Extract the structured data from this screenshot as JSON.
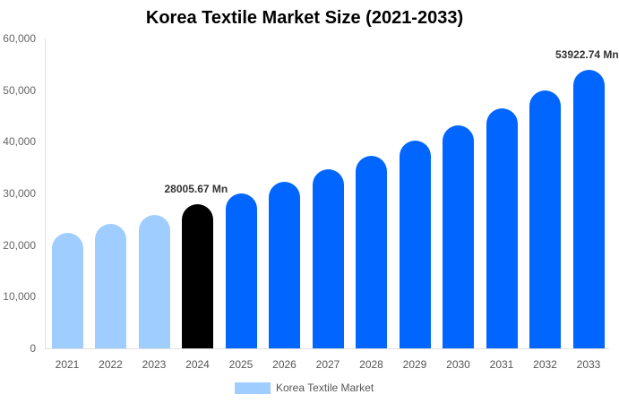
{
  "chart_data": {
    "type": "bar",
    "title": "Korea Textile Market Size (2021-2033)",
    "xlabel": "",
    "ylabel": "",
    "ylim": [
      0,
      60000
    ],
    "yticks": [
      "0",
      "10,000",
      "20,000",
      "30,000",
      "40,000",
      "50,000",
      "60,000"
    ],
    "categories": [
      "2021",
      "2022",
      "2023",
      "2024",
      "2025",
      "2026",
      "2027",
      "2028",
      "2029",
      "2030",
      "2031",
      "2032",
      "2033"
    ],
    "series": [
      {
        "name": "Korea Textile Market",
        "values": [
          22370,
          24100,
          25840,
          28005.67,
          29990,
          32250,
          34680,
          37280,
          40230,
          43180,
          46470,
          49940,
          53922.74
        ]
      }
    ],
    "bar_colors": [
      "#a0cdff",
      "#a0cdff",
      "#a0cdff",
      "#000000",
      "#0066ff",
      "#0066ff",
      "#0066ff",
      "#0066ff",
      "#0066ff",
      "#0066ff",
      "#0066ff",
      "#0066ff",
      "#0066ff"
    ],
    "annotations": [
      {
        "category": "2024",
        "text": "28005.67 Mn"
      },
      {
        "category": "2033",
        "text": "53922.74 Mn"
      }
    ],
    "legend": {
      "position": "bottom",
      "entries": [
        "Korea Textile Market"
      ],
      "color": "#a0cdff"
    },
    "grid": false
  }
}
